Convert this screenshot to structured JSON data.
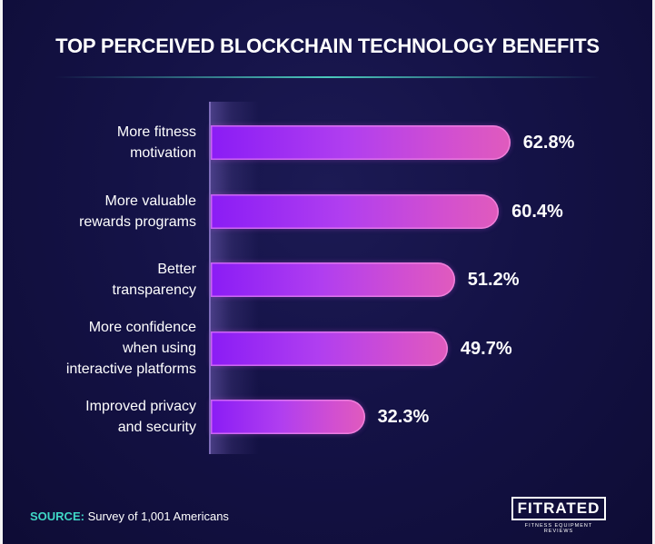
{
  "chart_data": {
    "type": "bar",
    "orientation": "horizontal",
    "title": "TOP PERCEIVED BLOCKCHAIN TECHNOLOGY BENEFITS",
    "categories": [
      "More fitness\nmotivation",
      "More valuable\nrewards programs",
      "Better\ntransparency",
      "More confidence\nwhen using\ninteractive platforms",
      "Improved privacy\nand security"
    ],
    "values": [
      62.8,
      60.4,
      51.2,
      49.7,
      32.3
    ],
    "value_labels": [
      "62.8%",
      "60.4%",
      "51.2%",
      "49.7%",
      "32.3%"
    ],
    "unit": "%",
    "xlim": [
      0,
      100
    ],
    "colors": {
      "bar_start": "#8a1cf5",
      "bar_end": "#e05bbd",
      "background": "#141246",
      "accent": "#3fd6c6"
    }
  },
  "footer": {
    "source_key": "SOURCE:",
    "source_text": " Survey of 1,001 Americans",
    "logo_text": "FITRATED",
    "logo_tagline": "FITNESS EQUIPMENT REVIEWS"
  }
}
